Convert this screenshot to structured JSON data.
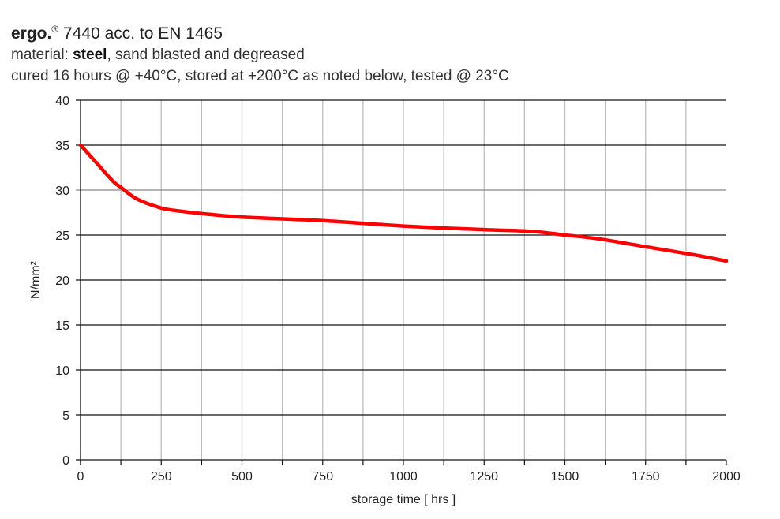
{
  "header": {
    "title_brand": "ergo.",
    "title_reg": "®",
    "title_product": "7440",
    "title_rest": " acc. to EN 1465",
    "line2_prefix": "material: ",
    "line2_bold": "steel",
    "line2_rest": ", sand blasted and degreased",
    "line3": "cured 16 hours @ +40°C, stored at +200°C as noted below, tested @ 23°C"
  },
  "chart_data": {
    "type": "line",
    "title": "ergo.® 7440 acc. to EN 1465",
    "xlabel": "storage time [ hrs ]",
    "ylabel": "N/mm²",
    "xlim": [
      0,
      2000
    ],
    "ylim": [
      0,
      40
    ],
    "xticks": [
      "0",
      "250",
      "500",
      "750",
      "1000",
      "1250",
      "1500",
      "1750",
      "2000"
    ],
    "yticks": [
      "0",
      "5",
      "10",
      "15",
      "20",
      "25",
      "30",
      "35",
      "40"
    ],
    "grid": true,
    "line_color": "#ff0000",
    "series": [
      {
        "x": [
          0,
          50,
          100,
          125,
          175,
          250,
          300,
          400,
          500,
          750,
          1000,
          1250,
          1400,
          1500,
          1600,
          1750,
          1900,
          2000
        ],
        "y": [
          35,
          33,
          31,
          30.3,
          29,
          28,
          27.7,
          27.3,
          27,
          26.6,
          26,
          25.6,
          25.4,
          25,
          24.6,
          23.7,
          22.8,
          22.1
        ]
      }
    ]
  }
}
